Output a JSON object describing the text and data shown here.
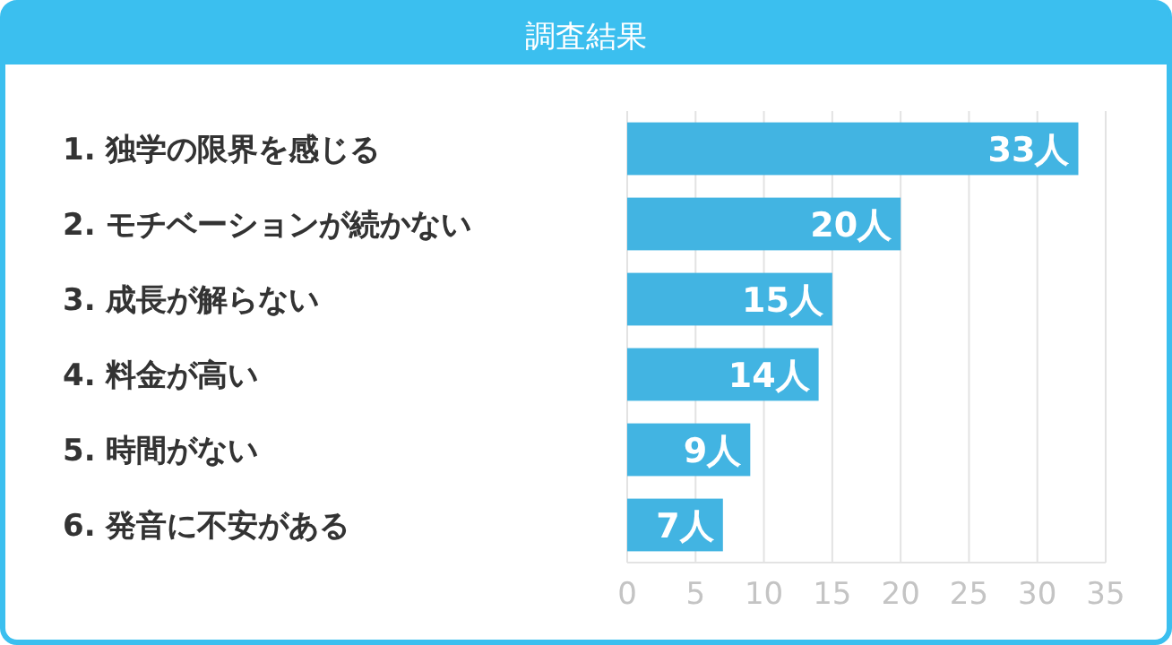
{
  "chart_data": {
    "type": "bar",
    "orientation": "horizontal",
    "title": "調査結果",
    "categories": [
      "1. 独学の限界を感じる",
      "2. モチベーションが続かない",
      "3. 成長が解らない",
      "4. 料金が高い",
      "5. 時間がない",
      "6. 発音に不安がある"
    ],
    "values": [
      33,
      20,
      15,
      14,
      9,
      7
    ],
    "value_labels": [
      "33人",
      "20人",
      "15人",
      "14人",
      "9人",
      "7人"
    ],
    "color": "#42b4e2",
    "xlim": [
      0,
      35
    ],
    "xticks": [
      0,
      5,
      10,
      15,
      20,
      25,
      30,
      35
    ],
    "grid": "x"
  }
}
